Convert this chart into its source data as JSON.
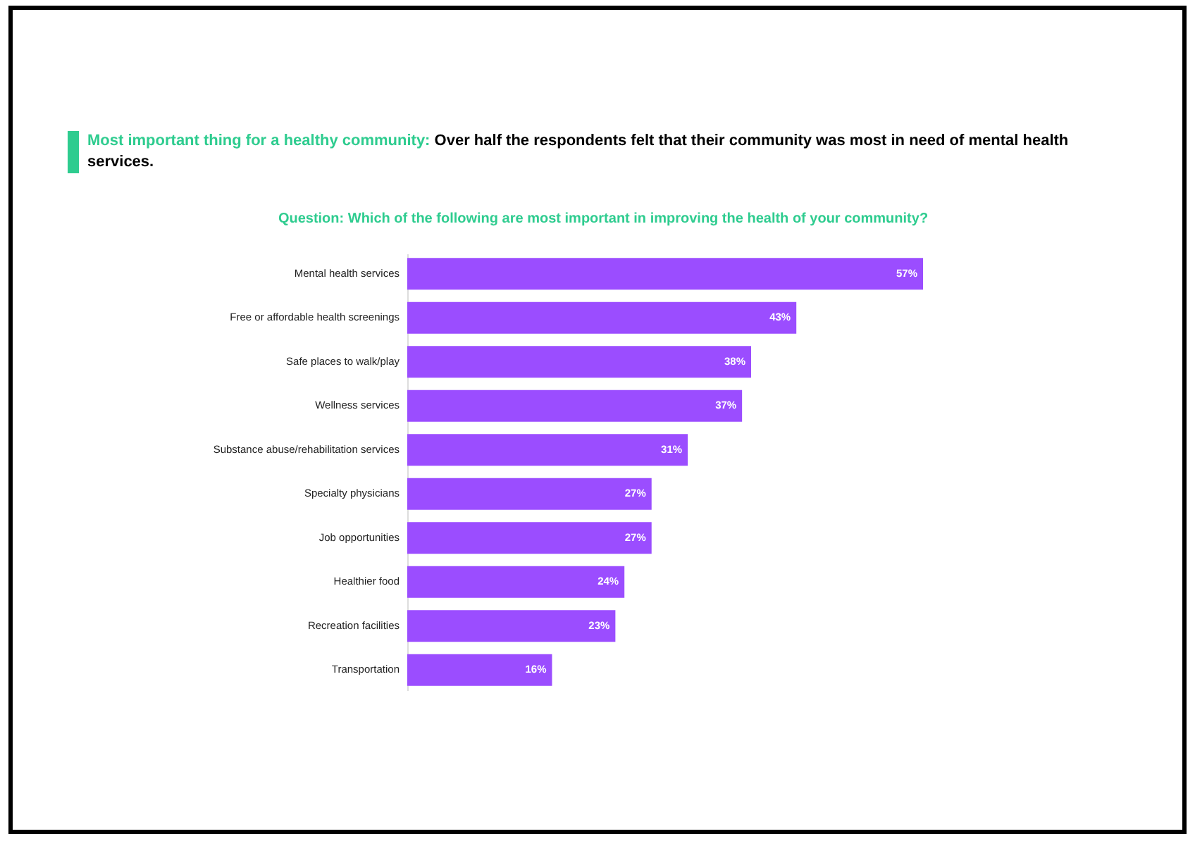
{
  "chart_data": {
    "type": "bar",
    "orientation": "horizontal",
    "title": "Most important thing for a healthy community:",
    "subtitle": "Over half the respondents felt that their community was most in need of mental health services.",
    "annotations": [
      "Question: Which of the following are most important in improving the health of your community?"
    ],
    "categories": [
      "Mental health services",
      "Free or affordable health screenings",
      "Safe places to walk/play",
      "Wellness services",
      "Substance abuse/rehabilitation services",
      "Specialty physicians",
      "Job opportunities",
      "Healthier food",
      "Recreation facilities",
      "Transportation"
    ],
    "values": [
      57,
      43,
      38,
      37,
      31,
      27,
      27,
      24,
      23,
      16
    ],
    "value_labels": [
      "57%",
      "43%",
      "38%",
      "37%",
      "31%",
      "27%",
      "27%",
      "24%",
      "23%",
      "16%"
    ],
    "color": "#9b4dff"
  }
}
